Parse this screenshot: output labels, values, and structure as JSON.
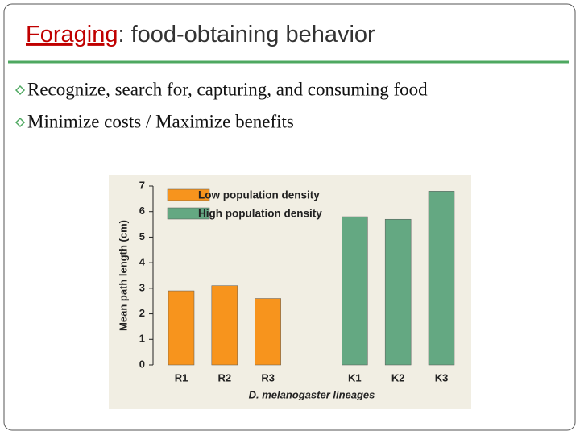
{
  "slide": {
    "title_term": "Foraging",
    "title_rest": ": food-obtaining behavior",
    "bullets": [
      "Recognize, search for, capturing, and consuming food",
      "Minimize costs / Maximize benefits"
    ]
  },
  "chart_data": {
    "type": "bar",
    "ylabel": "Mean path length (cm)",
    "xlabel": "D. melanogaster lineages",
    "categories": [
      "R1",
      "R2",
      "R3",
      null,
      "K1",
      "K2",
      "K3"
    ],
    "series": [
      {
        "name": "Low population density",
        "color": "#f7941d",
        "values": [
          2.9,
          3.1,
          2.6,
          null,
          null,
          null,
          null
        ]
      },
      {
        "name": "High population density",
        "color": "#64a882",
        "values": [
          null,
          null,
          null,
          null,
          5.8,
          5.7,
          6.8
        ]
      }
    ],
    "ylim": [
      0,
      7
    ],
    "yticks": [
      0,
      1,
      2,
      3,
      4,
      5,
      6,
      7
    ]
  }
}
